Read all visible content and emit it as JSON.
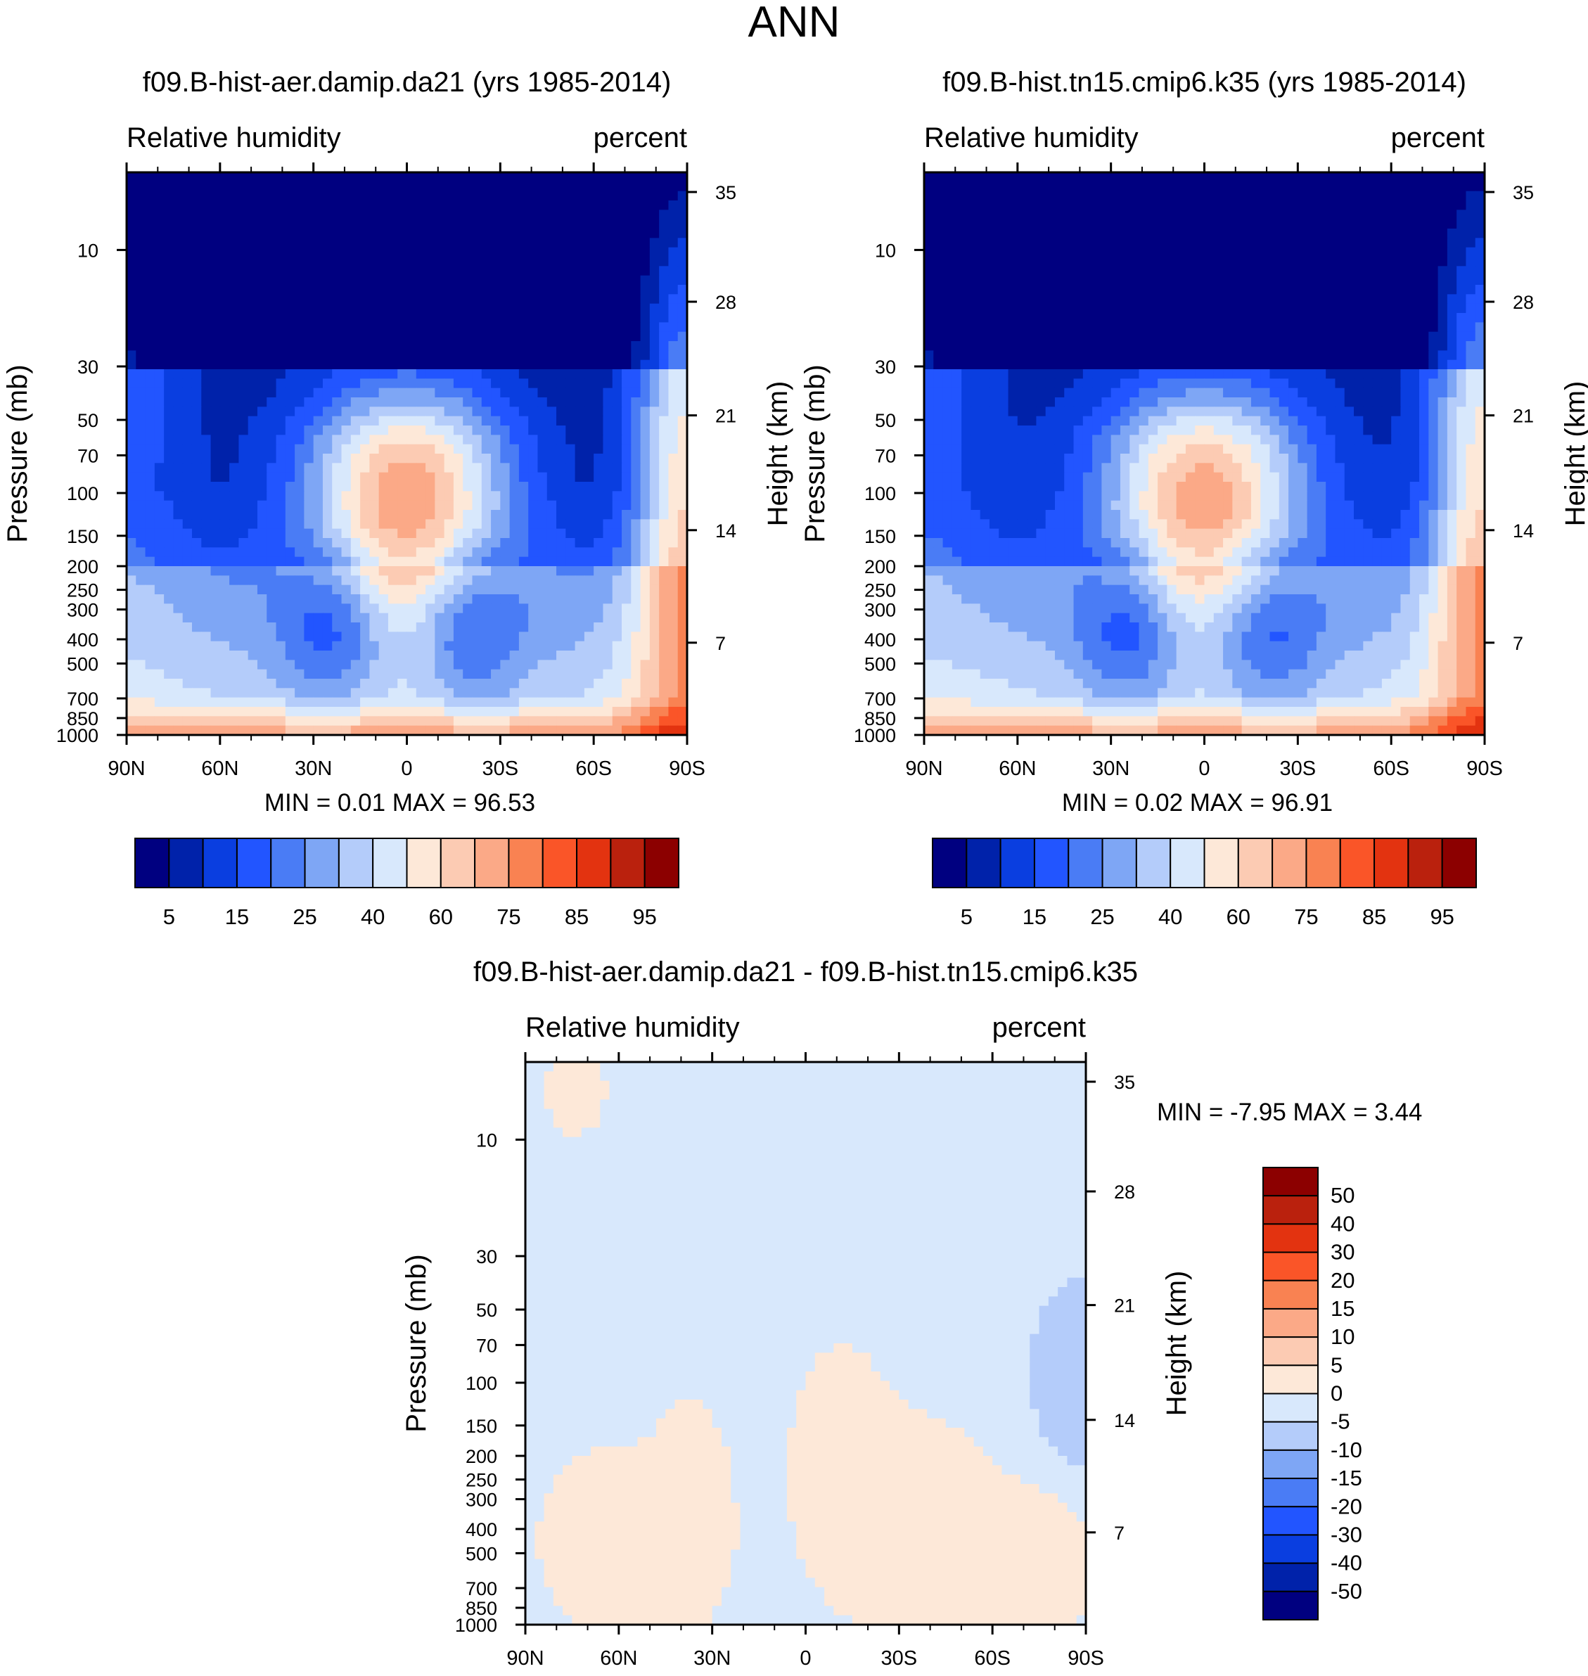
{
  "figure": {
    "title": "ANN"
  },
  "chart_data": [
    {
      "type": "heatmap",
      "id": "control",
      "title": "f09.B-hist-aer.damip.da21 (yrs 1985-2014)",
      "left_label": "Relative humidity",
      "right_label": "percent",
      "xlabel": "",
      "ylabel": "Pressure (mb)",
      "y2label": "Height (km)",
      "x_ticks": [
        "90N",
        "60N",
        "30N",
        "0",
        "30S",
        "60S",
        "90S"
      ],
      "y_ticks": [
        "10",
        "30",
        "50",
        "70",
        "100",
        "150",
        "200",
        "250",
        "300",
        "400",
        "500",
        "700",
        "850",
        "1000"
      ],
      "y2_ticks": [
        "35",
        "28",
        "21",
        "14",
        "7"
      ],
      "stats": "MIN =   0.01  MAX =  96.53",
      "min": 0.01,
      "max": 96.53,
      "colorbar_labels": [
        "5",
        "15",
        "25",
        "40",
        "60",
        "75",
        "85",
        "95"
      ]
    },
    {
      "type": "heatmap",
      "id": "test",
      "title": "f09.B-hist.tn15.cmip6.k35 (yrs 1985-2014)",
      "left_label": "Relative humidity",
      "right_label": "percent",
      "xlabel": "",
      "ylabel": "Pressure (mb)",
      "y2label": "Height (km)",
      "x_ticks": [
        "90N",
        "60N",
        "30N",
        "0",
        "30S",
        "60S",
        "90S"
      ],
      "y_ticks": [
        "10",
        "30",
        "50",
        "70",
        "100",
        "150",
        "200",
        "250",
        "300",
        "400",
        "500",
        "700",
        "850",
        "1000"
      ],
      "y2_ticks": [
        "35",
        "28",
        "21",
        "14",
        "7"
      ],
      "stats": "MIN =   0.02  MAX =  96.91",
      "min": 0.02,
      "max": 96.91,
      "colorbar_labels": [
        "5",
        "15",
        "25",
        "40",
        "60",
        "75",
        "85",
        "95"
      ]
    },
    {
      "type": "heatmap",
      "id": "diff",
      "title": "f09.B-hist-aer.damip.da21 - f09.B-hist.tn15.cmip6.k35",
      "left_label": "Relative humidity",
      "right_label": "percent",
      "xlabel": "",
      "ylabel": "Pressure (mb)",
      "y2label": "Height (km)",
      "x_ticks": [
        "90N",
        "60N",
        "30N",
        "0",
        "30S",
        "60S",
        "90S"
      ],
      "y_ticks": [
        "10",
        "30",
        "50",
        "70",
        "100",
        "150",
        "200",
        "250",
        "300",
        "400",
        "500",
        "700",
        "850",
        "1000"
      ],
      "y2_ticks": [
        "35",
        "28",
        "21",
        "14",
        "7"
      ],
      "stats": "MIN =  -7.95  MAX =   3.44",
      "min": -7.95,
      "max": 3.44,
      "colorbar_labels": [
        "50",
        "40",
        "30",
        "20",
        "15",
        "10",
        "5",
        "0",
        "-5",
        "-10",
        "-15",
        "-20",
        "-30",
        "-40",
        "-50"
      ]
    }
  ],
  "palette": [
    "#000080",
    "#0022aa",
    "#0a3ee0",
    "#2255ff",
    "#4a7cf5",
    "#7ea6f5",
    "#b4ccfa",
    "#d8e8fc",
    "#fde8d8",
    "#fccbb3",
    "#fba987",
    "#f98252",
    "#fa5528",
    "#e33310",
    "#ba210d",
    "#8c0000"
  ]
}
